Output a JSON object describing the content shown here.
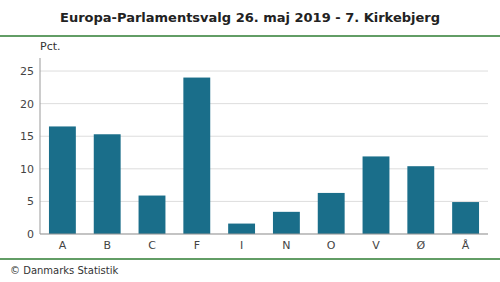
{
  "chart_data": {
    "type": "bar",
    "title": "Europa-Parlamentsvalg 26. maj 2019 - 7. Kirkebjerg",
    "ylabel": "Pct.",
    "footer": "© Danmarks Statistik",
    "categories": [
      "A",
      "B",
      "C",
      "F",
      "I",
      "N",
      "O",
      "V",
      "Ø",
      "Å"
    ],
    "values": [
      16.5,
      15.3,
      5.9,
      24.0,
      1.6,
      3.4,
      6.3,
      11.9,
      10.4,
      4.9
    ],
    "color": "#1a6e8a",
    "ylim": [
      0,
      27
    ],
    "yticks": [
      0,
      5,
      10,
      15,
      20,
      25
    ],
    "grid": true
  }
}
